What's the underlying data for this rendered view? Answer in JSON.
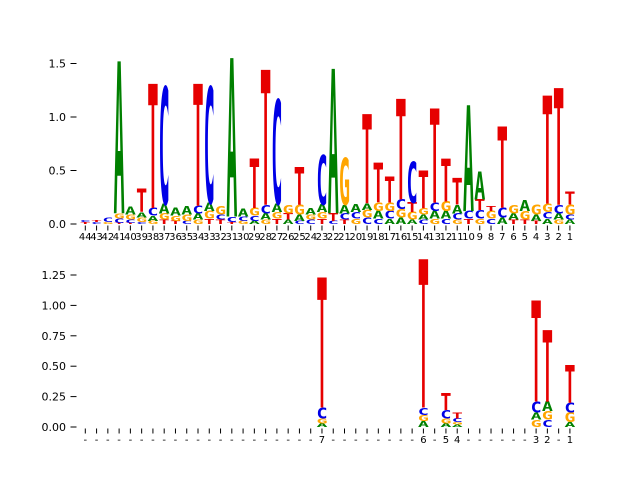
{
  "figure_title": "",
  "colors": {
    "A": "#008000",
    "C": "#0000e6",
    "G": "#ffa500",
    "T": "#e60000"
  },
  "chart_data": [
    {
      "id": "top",
      "type": "logo",
      "title": "",
      "xlabel": "",
      "ylabel": "",
      "ylim": [
        0,
        1.55
      ],
      "yticks": [
        "0.0",
        "0.5",
        "1.0",
        "1.5"
      ],
      "ytick_values": [
        0,
        0.5,
        1.0,
        1.5
      ],
      "legend": null,
      "grid": false,
      "positions": [
        {
          "label": "44",
          "stack": [
            [
              "T",
              0.02
            ],
            [
              "C",
              0.02
            ]
          ]
        },
        {
          "label": "43",
          "stack": [
            [
              "C",
              0.02
            ],
            [
              "T",
              0.02
            ]
          ]
        },
        {
          "label": "42",
          "stack": [
            [
              "G",
              0.02
            ],
            [
              "C",
              0.04
            ]
          ]
        },
        {
          "label": "41",
          "stack": [
            [
              "T",
              0.01
            ],
            [
              "C",
              0.04
            ],
            [
              "G",
              0.05
            ],
            [
              "A",
              1.42
            ]
          ]
        },
        {
          "label": "40",
          "stack": [
            [
              "T",
              0.01
            ],
            [
              "C",
              0.03
            ],
            [
              "G",
              0.05
            ],
            [
              "A",
              0.07
            ]
          ]
        },
        {
          "label": "39",
          "stack": [
            [
              "C",
              0.02
            ],
            [
              "G",
              0.04
            ],
            [
              "A",
              0.05
            ],
            [
              "T",
              0.22
            ]
          ]
        },
        {
          "label": "38",
          "stack": [
            [
              "G",
              0.03
            ],
            [
              "A",
              0.05
            ],
            [
              "C",
              0.07
            ],
            [
              "T",
              1.16
            ]
          ]
        },
        {
          "label": "37",
          "stack": [
            [
              "T",
              0.04
            ],
            [
              "G",
              0.06
            ],
            [
              "A",
              0.09
            ],
            [
              "C",
              1.09
            ]
          ]
        },
        {
          "label": "36",
          "stack": [
            [
              "T",
              0.03
            ],
            [
              "G",
              0.05
            ],
            [
              "A",
              0.07
            ]
          ]
        },
        {
          "label": "35",
          "stack": [
            [
              "C",
              0.03
            ],
            [
              "G",
              0.06
            ],
            [
              "A",
              0.08
            ]
          ]
        },
        {
          "label": "34",
          "stack": [
            [
              "G",
              0.04
            ],
            [
              "A",
              0.06
            ],
            [
              "C",
              0.07
            ],
            [
              "T",
              1.14
            ]
          ]
        },
        {
          "label": "33",
          "stack": [
            [
              "T",
              0.05
            ],
            [
              "G",
              0.07
            ],
            [
              "A",
              0.08
            ],
            [
              "C",
              1.08
            ]
          ]
        },
        {
          "label": "32",
          "stack": [
            [
              "T",
              0.04
            ],
            [
              "C",
              0.05
            ],
            [
              "G",
              0.08
            ]
          ]
        },
        {
          "label": "31",
          "stack": [
            [
              "T",
              0.02
            ],
            [
              "C",
              0.05
            ],
            [
              "A",
              1.48
            ]
          ]
        },
        {
          "label": "30",
          "stack": [
            [
              "G",
              0.03
            ],
            [
              "C",
              0.04
            ],
            [
              "A",
              0.07
            ]
          ]
        },
        {
          "label": "29",
          "stack": [
            [
              "A",
              0.03
            ],
            [
              "C",
              0.05
            ],
            [
              "G",
              0.07
            ],
            [
              "T",
              0.46
            ]
          ]
        },
        {
          "label": "28",
          "stack": [
            [
              "G",
              0.04
            ],
            [
              "A",
              0.06
            ],
            [
              "C",
              0.08
            ],
            [
              "T",
              1.26
            ]
          ]
        },
        {
          "label": "27",
          "stack": [
            [
              "T",
              0.05
            ],
            [
              "G",
              0.06
            ],
            [
              "A",
              0.08
            ],
            [
              "C",
              0.97
            ]
          ]
        },
        {
          "label": "26",
          "stack": [
            [
              "A",
              0.04
            ],
            [
              "T",
              0.06
            ],
            [
              "G",
              0.08
            ]
          ]
        },
        {
          "label": "25",
          "stack": [
            [
              "C",
              0.03
            ],
            [
              "A",
              0.06
            ],
            [
              "G",
              0.09
            ],
            [
              "T",
              0.35
            ]
          ]
        },
        {
          "label": "24",
          "stack": [
            [
              "C",
              0.04
            ],
            [
              "G",
              0.05
            ],
            [
              "A",
              0.06
            ]
          ]
        },
        {
          "label": "23",
          "stack": [
            [
              "T",
              0.05
            ],
            [
              "G",
              0.06
            ],
            [
              "A",
              0.07
            ],
            [
              "C",
              0.46
            ]
          ]
        },
        {
          "label": "22",
          "stack": [
            [
              "C",
              0.03
            ],
            [
              "T",
              0.07
            ],
            [
              "A",
              1.35
            ]
          ]
        },
        {
          "label": "21",
          "stack": [
            [
              "T",
              0.04
            ],
            [
              "C",
              0.06
            ],
            [
              "A",
              0.08
            ],
            [
              "G",
              0.44
            ]
          ]
        },
        {
          "label": "20",
          "stack": [
            [
              "G",
              0.05
            ],
            [
              "C",
              0.06
            ],
            [
              "A",
              0.07
            ]
          ]
        },
        {
          "label": "19",
          "stack": [
            [
              "C",
              0.06
            ],
            [
              "G",
              0.07
            ],
            [
              "A",
              0.06
            ],
            [
              "T",
              0.83
            ]
          ]
        },
        {
          "label": "18",
          "stack": [
            [
              "C",
              0.05
            ],
            [
              "A",
              0.07
            ],
            [
              "G",
              0.08
            ],
            [
              "T",
              0.37
            ]
          ]
        },
        {
          "label": "17",
          "stack": [
            [
              "A",
              0.05
            ],
            [
              "C",
              0.07
            ],
            [
              "G",
              0.08
            ],
            [
              "T",
              0.24
            ]
          ]
        },
        {
          "label": "16",
          "stack": [
            [
              "A",
              0.06
            ],
            [
              "G",
              0.08
            ],
            [
              "C",
              0.09
            ],
            [
              "T",
              0.94
            ]
          ]
        },
        {
          "label": "15",
          "stack": [
            [
              "A",
              0.04
            ],
            [
              "G",
              0.07
            ],
            [
              "T",
              0.09
            ],
            [
              "C",
              0.38
            ]
          ]
        },
        {
          "label": "14",
          "stack": [
            [
              "C",
              0.04
            ],
            [
              "A",
              0.05
            ],
            [
              "G",
              0.06
            ],
            [
              "T",
              0.35
            ]
          ]
        },
        {
          "label": "13",
          "stack": [
            [
              "G",
              0.05
            ],
            [
              "A",
              0.07
            ],
            [
              "C",
              0.08
            ],
            [
              "T",
              0.88
            ]
          ]
        },
        {
          "label": "12",
          "stack": [
            [
              "C",
              0.05
            ],
            [
              "A",
              0.07
            ],
            [
              "G",
              0.09
            ],
            [
              "T",
              0.4
            ]
          ]
        },
        {
          "label": "11",
          "stack": [
            [
              "G",
              0.04
            ],
            [
              "C",
              0.06
            ],
            [
              "A",
              0.08
            ],
            [
              "T",
              0.25
            ]
          ]
        },
        {
          "label": "10",
          "stack": [
            [
              "T",
              0.05
            ],
            [
              "C",
              0.07
            ],
            [
              "A",
              0.99
            ]
          ]
        },
        {
          "label": "9",
          "stack": [
            [
              "G",
              0.05
            ],
            [
              "C",
              0.08
            ],
            [
              "T",
              0.1
            ],
            [
              "A",
              0.26
            ]
          ]
        },
        {
          "label": "8",
          "stack": [
            [
              "C",
              0.05
            ],
            [
              "G",
              0.07
            ],
            [
              "T",
              0.05
            ]
          ]
        },
        {
          "label": "7",
          "stack": [
            [
              "A",
              0.06
            ],
            [
              "C",
              0.09
            ],
            [
              "T",
              0.76
            ]
          ]
        },
        {
          "label": "6",
          "stack": [
            [
              "T",
              0.04
            ],
            [
              "A",
              0.06
            ],
            [
              "G",
              0.08
            ]
          ]
        },
        {
          "label": "5",
          "stack": [
            [
              "T",
              0.04
            ],
            [
              "G",
              0.08
            ],
            [
              "A",
              0.1
            ]
          ]
        },
        {
          "label": "4",
          "stack": [
            [
              "T",
              0.03
            ],
            [
              "A",
              0.06
            ],
            [
              "G",
              0.09
            ]
          ]
        },
        {
          "label": "3",
          "stack": [
            [
              "A",
              0.05
            ],
            [
              "C",
              0.06
            ],
            [
              "G",
              0.08
            ],
            [
              "T",
              1.01
            ]
          ]
        },
        {
          "label": "2",
          "stack": [
            [
              "G",
              0.04
            ],
            [
              "A",
              0.06
            ],
            [
              "C",
              0.08
            ],
            [
              "T",
              1.09
            ]
          ]
        },
        {
          "label": "1",
          "stack": [
            [
              "A",
              0.04
            ],
            [
              "C",
              0.05
            ],
            [
              "G",
              0.09
            ],
            [
              "T",
              0.12
            ]
          ]
        }
      ]
    },
    {
      "id": "bottom",
      "type": "logo",
      "title": "",
      "xlabel": "",
      "ylabel": "",
      "ylim": [
        0,
        1.4
      ],
      "yticks": [
        "0.00",
        "0.25",
        "0.50",
        "0.75",
        "1.00",
        "1.25"
      ],
      "ytick_values": [
        0,
        0.25,
        0.5,
        0.75,
        1.0,
        1.25
      ],
      "legend": null,
      "grid": false,
      "positions": [
        {
          "label": "-",
          "stack": []
        },
        {
          "label": "-",
          "stack": []
        },
        {
          "label": "-",
          "stack": []
        },
        {
          "label": "-",
          "stack": []
        },
        {
          "label": "-",
          "stack": []
        },
        {
          "label": "-",
          "stack": []
        },
        {
          "label": "-",
          "stack": []
        },
        {
          "label": "-",
          "stack": []
        },
        {
          "label": "-",
          "stack": []
        },
        {
          "label": "-",
          "stack": []
        },
        {
          "label": "-",
          "stack": []
        },
        {
          "label": "-",
          "stack": []
        },
        {
          "label": "-",
          "stack": []
        },
        {
          "label": "-",
          "stack": []
        },
        {
          "label": "-",
          "stack": []
        },
        {
          "label": "-",
          "stack": []
        },
        {
          "label": "-",
          "stack": []
        },
        {
          "label": "-",
          "stack": []
        },
        {
          "label": "-",
          "stack": []
        },
        {
          "label": "-",
          "stack": []
        },
        {
          "label": "-",
          "stack": []
        },
        {
          "label": "7",
          "stack": [
            [
              "A",
              0.03
            ],
            [
              "G",
              0.04
            ],
            [
              "C",
              0.09
            ],
            [
              "T",
              1.07
            ]
          ]
        },
        {
          "label": "-",
          "stack": []
        },
        {
          "label": "-",
          "stack": []
        },
        {
          "label": "-",
          "stack": []
        },
        {
          "label": "-",
          "stack": []
        },
        {
          "label": "-",
          "stack": []
        },
        {
          "label": "-",
          "stack": []
        },
        {
          "label": "-",
          "stack": []
        },
        {
          "label": "-",
          "stack": []
        },
        {
          "label": "6",
          "stack": [
            [
              "A",
              0.05
            ],
            [
              "G",
              0.05
            ],
            [
              "C",
              0.06
            ],
            [
              "T",
              1.22
            ]
          ]
        },
        {
          "label": "-",
          "stack": []
        },
        {
          "label": "5",
          "stack": [
            [
              "A",
              0.03
            ],
            [
              "G",
              0.04
            ],
            [
              "C",
              0.07
            ],
            [
              "T",
              0.14
            ]
          ]
        },
        {
          "label": "4",
          "stack": [
            [
              "A",
              0.02
            ],
            [
              "G",
              0.02
            ],
            [
              "C",
              0.03
            ],
            [
              "T",
              0.05
            ]
          ]
        },
        {
          "label": "-",
          "stack": []
        },
        {
          "label": "-",
          "stack": []
        },
        {
          "label": "-",
          "stack": []
        },
        {
          "label": "-",
          "stack": []
        },
        {
          "label": "-",
          "stack": []
        },
        {
          "label": "-",
          "stack": []
        },
        {
          "label": "3",
          "stack": [
            [
              "G",
              0.06
            ],
            [
              "A",
              0.06
            ],
            [
              "C",
              0.09
            ],
            [
              "T",
              0.83
            ]
          ]
        },
        {
          "label": "2",
          "stack": [
            [
              "C",
              0.06
            ],
            [
              "G",
              0.07
            ],
            [
              "A",
              0.08
            ],
            [
              "T",
              0.59
            ]
          ]
        },
        {
          "label": "-",
          "stack": []
        },
        {
          "label": "1",
          "stack": [
            [
              "A",
              0.04
            ],
            [
              "G",
              0.08
            ],
            [
              "C",
              0.08
            ],
            [
              "T",
              0.31
            ]
          ]
        }
      ]
    }
  ]
}
